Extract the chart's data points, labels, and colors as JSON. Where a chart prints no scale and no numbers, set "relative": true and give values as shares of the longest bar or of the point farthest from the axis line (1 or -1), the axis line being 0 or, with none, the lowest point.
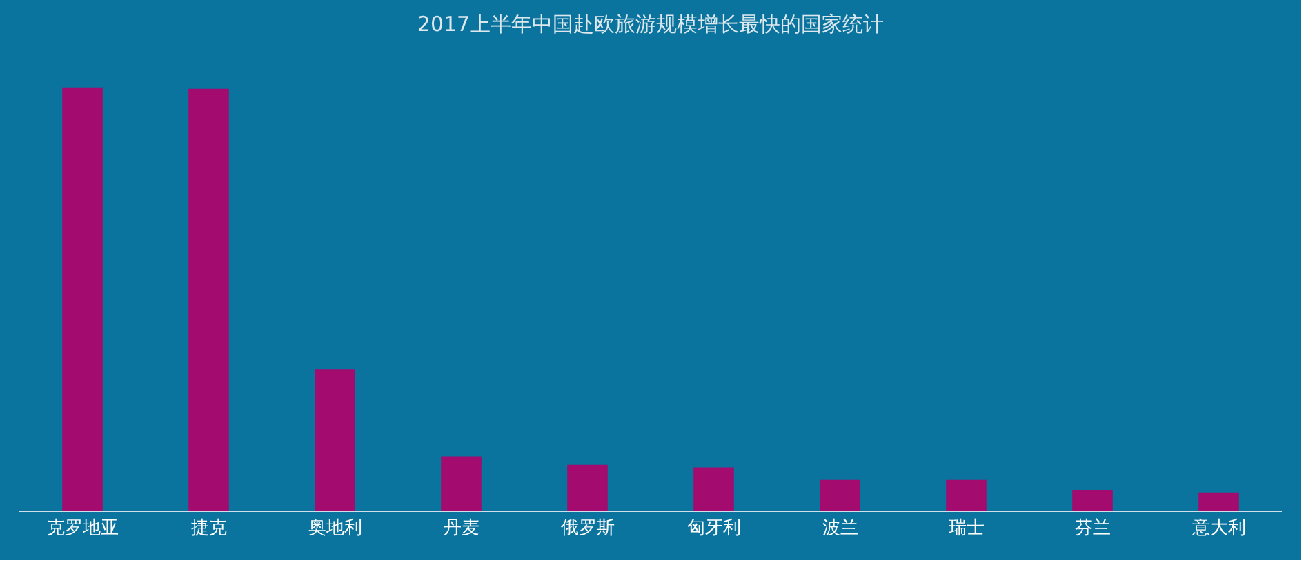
{
  "chart_data": {
    "type": "bar",
    "title": "2017上半年中国赴欧旅游规模增长最快的国家统计",
    "relative": true,
    "categories": [
      "克罗地亚",
      "捷克",
      "奥地利",
      "丹麦",
      "俄罗斯",
      "匈牙利",
      "波兰",
      "瑞士",
      "芬兰",
      "意大利"
    ],
    "values": [
      1,
      0.997,
      0.334,
      0.128,
      0.108,
      0.102,
      0.072,
      0.072,
      0.049,
      0.043
    ],
    "color": "#a30b6e",
    "grid": false,
    "legend": false
  }
}
